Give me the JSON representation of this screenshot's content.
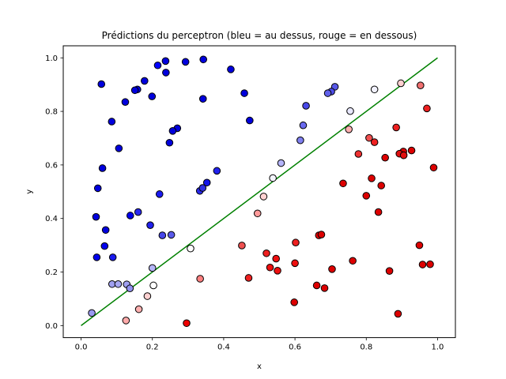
{
  "chart_data": {
    "type": "scatter",
    "title": "Prédictions du perceptron (bleu = au dessus, rouge = en dessous)",
    "xlabel": "x",
    "ylabel": "y",
    "xlim": [
      -0.05,
      1.05
    ],
    "ylim": [
      -0.045,
      1.045
    ],
    "xticks": [
      0.0,
      0.2,
      0.4,
      0.6,
      0.8,
      1.0
    ],
    "yticks": [
      0.0,
      0.2,
      0.4,
      0.6,
      0.8,
      1.0
    ],
    "xtick_labels": [
      "0.0",
      "0.2",
      "0.4",
      "0.6",
      "0.8",
      "1.0"
    ],
    "ytick_labels": [
      "0.0",
      "0.2",
      "0.4",
      "0.6",
      "0.8",
      "1.0"
    ],
    "grid": false,
    "line": {
      "x": [
        0,
        1
      ],
      "y": [
        0,
        1
      ],
      "color": "#008000"
    },
    "colors": {
      "axes": "#000000",
      "marker_edge": "#000000"
    },
    "points": [
      {
        "x": 0.237,
        "y": 0.988,
        "c": "#0000dd"
      },
      {
        "x": 0.293,
        "y": 0.985,
        "c": "#0000dd"
      },
      {
        "x": 0.343,
        "y": 0.994,
        "c": "#0000dd"
      },
      {
        "x": 0.42,
        "y": 0.957,
        "c": "#0000dd"
      },
      {
        "x": 0.215,
        "y": 0.972,
        "c": "#0000ff"
      },
      {
        "x": 0.238,
        "y": 0.945,
        "c": "#0000dd"
      },
      {
        "x": 0.178,
        "y": 0.914,
        "c": "#0000dd"
      },
      {
        "x": 0.057,
        "y": 0.902,
        "c": "#0000dd"
      },
      {
        "x": 0.158,
        "y": 0.882,
        "c": "#0000dd"
      },
      {
        "x": 0.151,
        "y": 0.879,
        "c": "#0000dd"
      },
      {
        "x": 0.458,
        "y": 0.868,
        "c": "#0000dd"
      },
      {
        "x": 0.199,
        "y": 0.856,
        "c": "#0000dd"
      },
      {
        "x": 0.342,
        "y": 0.847,
        "c": "#0000dd"
      },
      {
        "x": 0.124,
        "y": 0.835,
        "c": "#0000dd"
      },
      {
        "x": 0.473,
        "y": 0.766,
        "c": "#0000dd"
      },
      {
        "x": 0.086,
        "y": 0.762,
        "c": "#0000dd"
      },
      {
        "x": 0.27,
        "y": 0.737,
        "c": "#0000dd"
      },
      {
        "x": 0.257,
        "y": 0.727,
        "c": "#0000dd"
      },
      {
        "x": 0.248,
        "y": 0.683,
        "c": "#0000dd"
      },
      {
        "x": 0.106,
        "y": 0.662,
        "c": "#0000dd"
      },
      {
        "x": 0.06,
        "y": 0.588,
        "c": "#0000dd"
      },
      {
        "x": 0.381,
        "y": 0.578,
        "c": "#2222ee"
      },
      {
        "x": 0.353,
        "y": 0.534,
        "c": "#1414ea"
      },
      {
        "x": 0.047,
        "y": 0.513,
        "c": "#0000dd"
      },
      {
        "x": 0.333,
        "y": 0.503,
        "c": "#2828e8"
      },
      {
        "x": 0.341,
        "y": 0.514,
        "c": "#3030e4"
      },
      {
        "x": 0.22,
        "y": 0.491,
        "c": "#1a1af0"
      },
      {
        "x": 0.16,
        "y": 0.424,
        "c": "#2a2aee"
      },
      {
        "x": 0.138,
        "y": 0.411,
        "c": "#0000ee"
      },
      {
        "x": 0.042,
        "y": 0.406,
        "c": "#0000dd"
      },
      {
        "x": 0.194,
        "y": 0.375,
        "c": "#2020ec"
      },
      {
        "x": 0.069,
        "y": 0.357,
        "c": "#0000dd"
      },
      {
        "x": 0.228,
        "y": 0.337,
        "c": "#4646e8"
      },
      {
        "x": 0.253,
        "y": 0.339,
        "c": "#5a5aea"
      },
      {
        "x": 0.066,
        "y": 0.297,
        "c": "#0000ee"
      },
      {
        "x": 0.044,
        "y": 0.255,
        "c": "#0000ee"
      },
      {
        "x": 0.089,
        "y": 0.255,
        "c": "#1a1aee"
      },
      {
        "x": 0.712,
        "y": 0.892,
        "c": "#5858e8"
      },
      {
        "x": 0.702,
        "y": 0.874,
        "c": "#4c4ce8"
      },
      {
        "x": 0.692,
        "y": 0.868,
        "c": "#6060ea"
      },
      {
        "x": 0.631,
        "y": 0.821,
        "c": "#4848e8"
      },
      {
        "x": 0.755,
        "y": 0.801,
        "c": "#e8e8ff"
      },
      {
        "x": 0.823,
        "y": 0.882,
        "c": "#f2f2ff"
      },
      {
        "x": 0.623,
        "y": 0.748,
        "c": "#6a6aee"
      },
      {
        "x": 0.615,
        "y": 0.692,
        "c": "#8080f0"
      },
      {
        "x": 0.561,
        "y": 0.607,
        "c": "#b4b4f8"
      },
      {
        "x": 0.538,
        "y": 0.551,
        "c": "#f4f4ff"
      },
      {
        "x": 0.03,
        "y": 0.047,
        "c": "#9a9af2"
      },
      {
        "x": 0.2,
        "y": 0.215,
        "c": "#b4b4f6"
      },
      {
        "x": 0.087,
        "y": 0.155,
        "c": "#a0a0f0"
      },
      {
        "x": 0.104,
        "y": 0.155,
        "c": "#a8a8f2"
      },
      {
        "x": 0.128,
        "y": 0.154,
        "c": "#a0a0f0"
      },
      {
        "x": 0.137,
        "y": 0.139,
        "c": "#9090ee"
      },
      {
        "x": 0.203,
        "y": 0.15,
        "c": "#ffffff"
      },
      {
        "x": 0.307,
        "y": 0.288,
        "c": "#ffffff"
      },
      {
        "x": 0.897,
        "y": 0.905,
        "c": "#ffd0d0"
      },
      {
        "x": 0.952,
        "y": 0.897,
        "c": "#f07070"
      },
      {
        "x": 0.97,
        "y": 0.811,
        "c": "#ee2020"
      },
      {
        "x": 0.884,
        "y": 0.74,
        "c": "#ee2020"
      },
      {
        "x": 0.751,
        "y": 0.733,
        "c": "#ffb0b0"
      },
      {
        "x": 0.808,
        "y": 0.701,
        "c": "#f05050"
      },
      {
        "x": 0.823,
        "y": 0.685,
        "c": "#ee2020"
      },
      {
        "x": 0.927,
        "y": 0.654,
        "c": "#dd0000"
      },
      {
        "x": 0.904,
        "y": 0.65,
        "c": "#dd0000"
      },
      {
        "x": 0.893,
        "y": 0.642,
        "c": "#e01010"
      },
      {
        "x": 0.905,
        "y": 0.636,
        "c": "#e01010"
      },
      {
        "x": 0.778,
        "y": 0.641,
        "c": "#ee3030"
      },
      {
        "x": 0.853,
        "y": 0.627,
        "c": "#dd0000"
      },
      {
        "x": 0.989,
        "y": 0.59,
        "c": "#dd0000"
      },
      {
        "x": 0.815,
        "y": 0.55,
        "c": "#dd0000"
      },
      {
        "x": 0.735,
        "y": 0.531,
        "c": "#dd0000"
      },
      {
        "x": 0.842,
        "y": 0.523,
        "c": "#dd0000"
      },
      {
        "x": 0.8,
        "y": 0.485,
        "c": "#dd0000"
      },
      {
        "x": 0.512,
        "y": 0.482,
        "c": "#ffd2d2"
      },
      {
        "x": 0.834,
        "y": 0.424,
        "c": "#dd0000"
      },
      {
        "x": 0.495,
        "y": 0.419,
        "c": "#ff9a9a"
      },
      {
        "x": 0.602,
        "y": 0.31,
        "c": "#ee2020"
      },
      {
        "x": 0.667,
        "y": 0.337,
        "c": "#ee0000"
      },
      {
        "x": 0.674,
        "y": 0.34,
        "c": "#dd0000"
      },
      {
        "x": 0.451,
        "y": 0.299,
        "c": "#ee5050"
      },
      {
        "x": 0.949,
        "y": 0.3,
        "c": "#dd0000"
      },
      {
        "x": 0.52,
        "y": 0.27,
        "c": "#ee2020"
      },
      {
        "x": 0.547,
        "y": 0.25,
        "c": "#ee1010"
      },
      {
        "x": 0.762,
        "y": 0.242,
        "c": "#dd0000"
      },
      {
        "x": 0.6,
        "y": 0.233,
        "c": "#ee1010"
      },
      {
        "x": 0.958,
        "y": 0.228,
        "c": "#dd0000"
      },
      {
        "x": 0.979,
        "y": 0.229,
        "c": "#dd0000"
      },
      {
        "x": 0.53,
        "y": 0.217,
        "c": "#ee1010"
      },
      {
        "x": 0.704,
        "y": 0.211,
        "c": "#dd0000"
      },
      {
        "x": 0.551,
        "y": 0.205,
        "c": "#ee1010"
      },
      {
        "x": 0.865,
        "y": 0.204,
        "c": "#dd0000"
      },
      {
        "x": 0.334,
        "y": 0.175,
        "c": "#ff8080"
      },
      {
        "x": 0.47,
        "y": 0.178,
        "c": "#ee2020"
      },
      {
        "x": 0.661,
        "y": 0.15,
        "c": "#dd0000"
      },
      {
        "x": 0.683,
        "y": 0.14,
        "c": "#dd0000"
      },
      {
        "x": 0.186,
        "y": 0.11,
        "c": "#ffd0d0"
      },
      {
        "x": 0.598,
        "y": 0.087,
        "c": "#dd0000"
      },
      {
        "x": 0.162,
        "y": 0.061,
        "c": "#ffb0b0"
      },
      {
        "x": 0.889,
        "y": 0.044,
        "c": "#dd0000"
      },
      {
        "x": 0.126,
        "y": 0.019,
        "c": "#ffaaaa"
      },
      {
        "x": 0.296,
        "y": 0.009,
        "c": "#ee0000"
      }
    ]
  }
}
